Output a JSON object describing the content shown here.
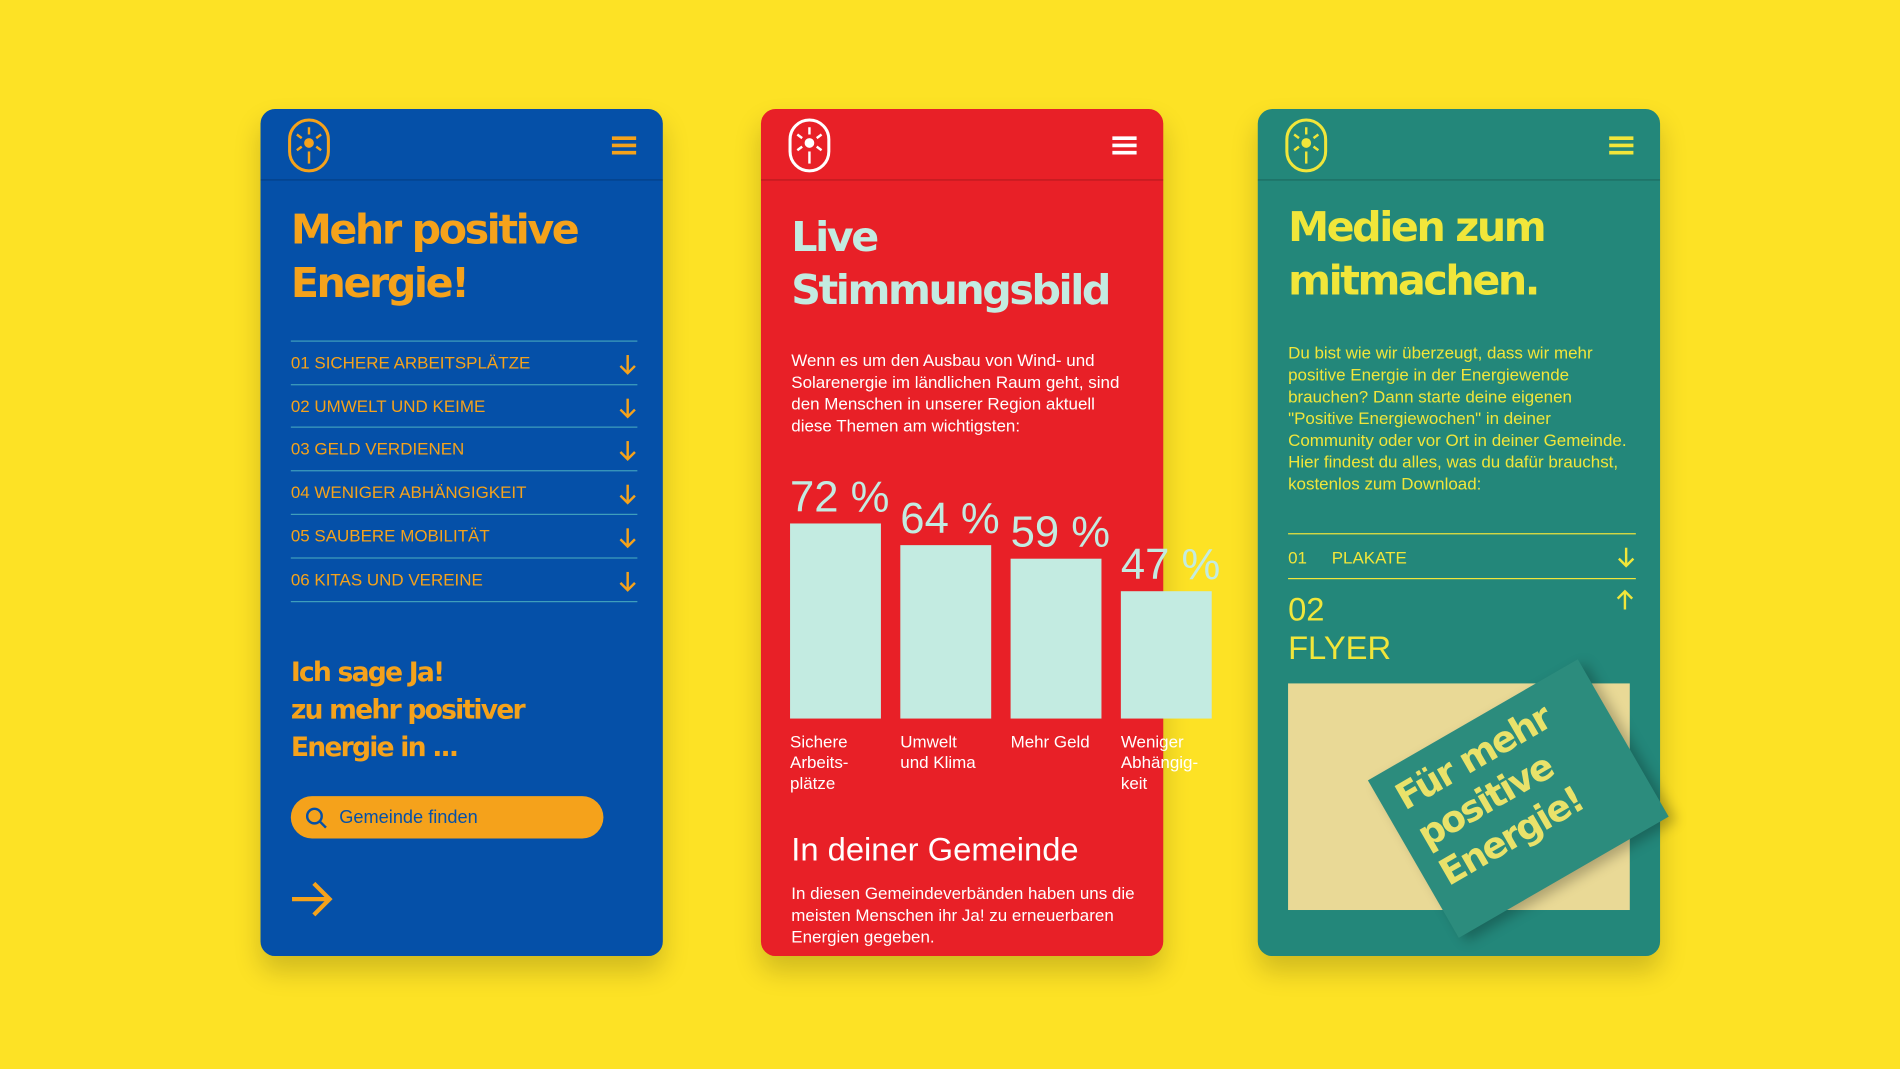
{
  "screens": [
    {
      "title_lines": [
        "Mehr positive",
        "Energie!"
      ],
      "items": [
        "01 SICHERE ARBEITSPLÄTZE",
        "02 UMWELT UND KEIME",
        "03 GELD VERDIENEN",
        "04 WENIGER ABHÄNGIGKEIT",
        "05 SAUBERE MOBILITÄT",
        "06 KITAS UND VEREINE"
      ],
      "cta_lines": [
        "Ich sage Ja!",
        "zu mehr positiver",
        "Energie in ..."
      ],
      "search_placeholder": "Gemeinde finden"
    },
    {
      "title_lines": [
        "Live",
        "Stimmungsbild"
      ],
      "intro_lines": [
        "Wenn es um den Ausbau von Wind- und",
        "Solarenergie im ländlichen Raum geht, sind",
        "den Menschen in unserer Region aktuell",
        "diese Themen am wichtigsten:"
      ],
      "chart_data": {
        "type": "bar",
        "categories": [
          [
            "Sichere",
            "Arbeits-",
            "plätze"
          ],
          [
            "Umwelt",
            "und Klima"
          ],
          [
            "Mehr Geld"
          ],
          [
            "Weniger",
            "Abhängig-",
            "keit"
          ]
        ],
        "values": [
          72,
          64,
          59,
          47
        ],
        "value_labels": [
          "72 %",
          "64 %",
          "59 %",
          "47 %"
        ],
        "color": "#c3ebe1"
      },
      "section_title": "In deiner Gemeinde",
      "section_lines": [
        "In diesen Gemeindeverbänden haben uns die",
        "meisten Menschen ihr Ja! zu erneuerbaren",
        "Energien gegeben."
      ]
    },
    {
      "title_lines": [
        "Medien zum",
        "mitmachen."
      ],
      "intro_lines": [
        "Du bist wie wir überzeugt, dass wir mehr",
        "positive Energie in der Energiewende",
        "brauchen? Dann starte deine eigenen",
        "\"Positive Energiewochen\" in deiner",
        "Community oder vor Ort in deiner Gemeinde.",
        "Hier findest du alles, was du dafür brauchst,",
        "kostenlos zum Download:"
      ],
      "accordion": [
        {
          "number": "01",
          "label": "PLAKATE"
        },
        {
          "number": "02",
          "label": "FLYER"
        }
      ],
      "flyer_lines": [
        "Für mehr",
        "positive",
        "Energie!"
      ]
    }
  ]
}
